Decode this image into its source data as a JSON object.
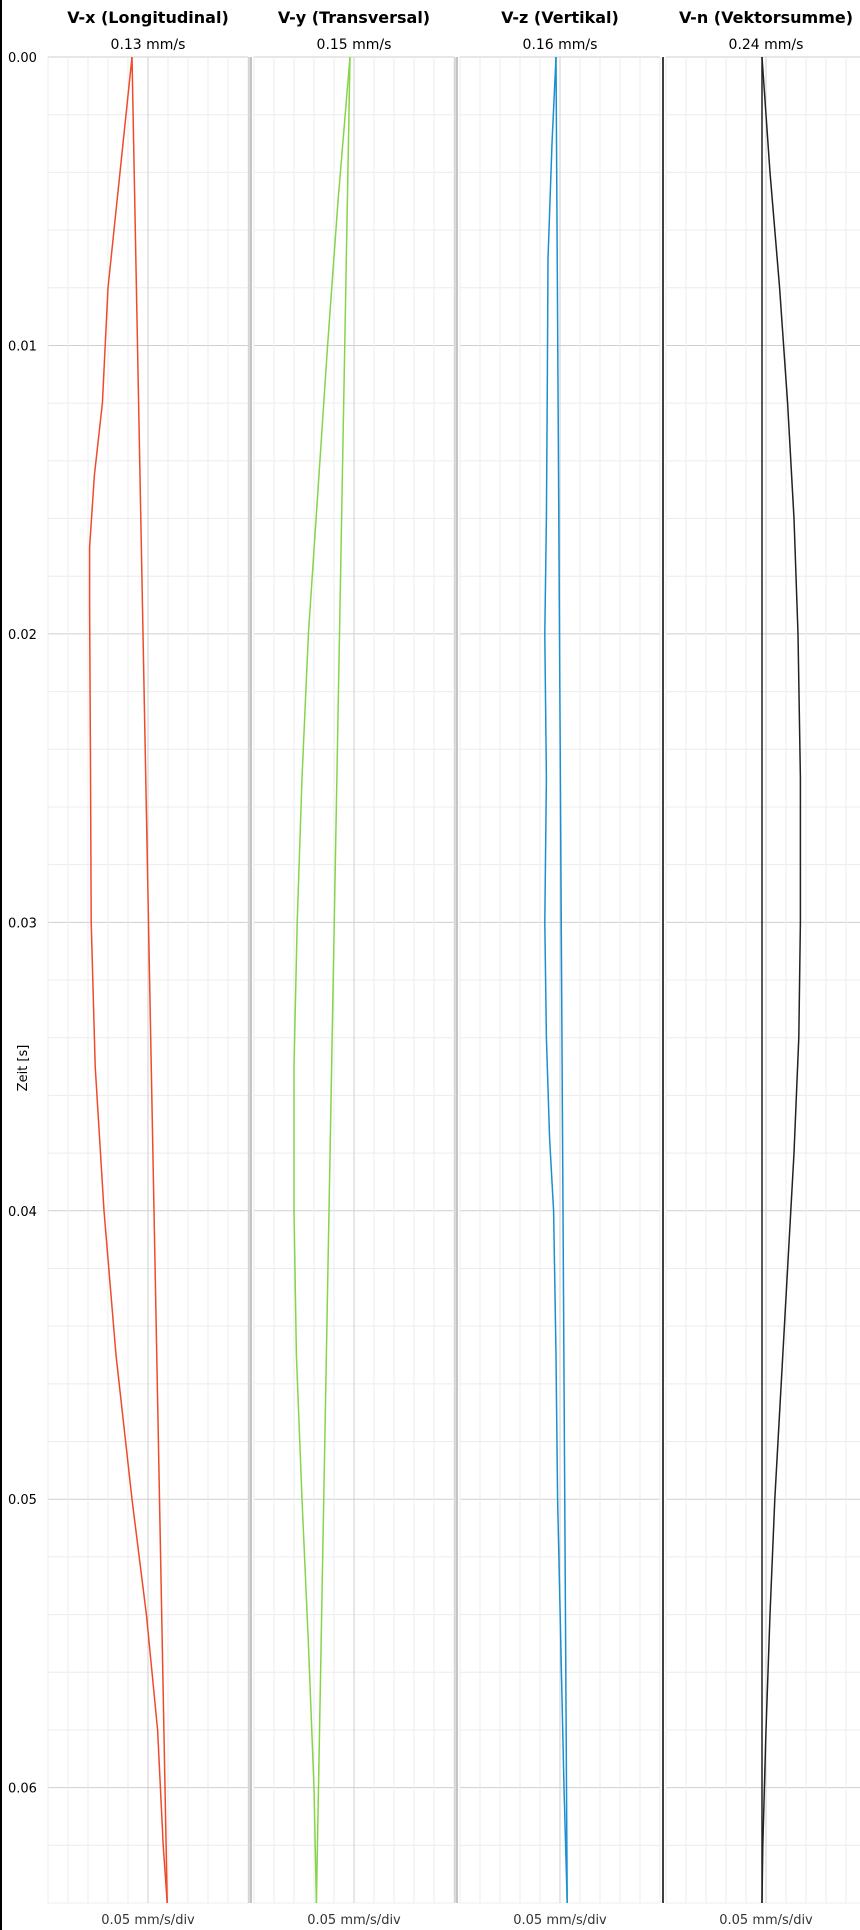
{
  "chart_data": {
    "type": "line",
    "orientation": "vertical-time",
    "ylabel": "Zeit [s]",
    "ylim": [
      0,
      0.064
    ],
    "yticks": [
      "0.00",
      "0.01",
      "0.02",
      "0.03",
      "0.04",
      "0.05",
      "0.06"
    ],
    "grid": true,
    "panels": [
      {
        "title": "V-x (Longitudinal)",
        "peak": "0.13 mm/s",
        "footer": "0.05 mm/s/div",
        "color": "#ee4b2b",
        "xlim": [
          -0.12,
          0.13
        ],
        "series": [
          {
            "t": [
              0.0,
              0.004,
              0.008,
              0.012,
              0.0145,
              0.017,
              0.019,
              0.024,
              0.03,
              0.035,
              0.04,
              0.045,
              0.05,
              0.054,
              0.058,
              0.062,
              0.064
            ],
            "v": [
              -0.015,
              -0.03,
              -0.045,
              -0.052,
              -0.062,
              -0.068,
              -0.068,
              -0.067,
              -0.066,
              -0.061,
              -0.05,
              -0.035,
              -0.015,
              0.003,
              0.017,
              0.024,
              0.029
            ]
          },
          {
            "t": [
              0.0,
              0.064
            ],
            "v": [
              -0.015,
              0.029
            ]
          }
        ]
      },
      {
        "title": "V-y (Transversal)",
        "peak": "0.15 mm/s",
        "footer": "0.05 mm/s/div",
        "color": "#86d44a",
        "xlim": [
          -0.12,
          0.13
        ],
        "series": [
          {
            "t": [
              0.0,
              0.005,
              0.01,
              0.015,
              0.02,
              0.025,
              0.03,
              0.035,
              0.04,
              0.045,
              0.05,
              0.055,
              0.06,
              0.064
            ],
            "v": [
              0.0,
              -0.015,
              -0.028,
              -0.04,
              -0.052,
              -0.06,
              -0.066,
              -0.07,
              -0.07,
              -0.067,
              -0.06,
              -0.052,
              -0.045,
              -0.042
            ]
          },
          {
            "t": [
              0.0,
              0.064
            ],
            "v": [
              0.0,
              -0.042
            ]
          }
        ]
      },
      {
        "title": "V-z (Vertikal)",
        "peak": "0.16 mm/s",
        "footer": "0.05 mm/s/div",
        "color": "#1a8fd1",
        "xlim": [
          -0.12,
          0.13
        ],
        "series": [
          {
            "t": [
              0.0,
              0.003,
              0.007,
              0.012,
              0.016,
              0.02,
              0.025,
              0.03,
              0.034,
              0.0375,
              0.04,
              0.045,
              0.05,
              0.055,
              0.06,
              0.064
            ],
            "v": [
              0.0,
              -0.005,
              -0.01,
              -0.011,
              -0.012,
              -0.014,
              -0.012,
              -0.014,
              -0.012,
              -0.008,
              -0.003,
              0.0,
              0.002,
              0.006,
              0.01,
              0.014
            ]
          },
          {
            "t": [
              0.0,
              0.064
            ],
            "v": [
              0.0,
              0.014
            ]
          }
        ]
      },
      {
        "title": "V-n (Vektorsumme)",
        "peak": "0.24 mm/s",
        "footer": "0.05 mm/s/div",
        "color": "#222222",
        "xlim": [
          -0.12,
          0.13
        ],
        "series": [
          {
            "t": [
              0.0,
              0.004,
              0.008,
              0.012,
              0.016,
              0.02,
              0.025,
              0.03,
              0.034,
              0.038,
              0.042,
              0.046,
              0.05,
              0.054,
              0.058,
              0.062,
              0.064
            ],
            "v": [
              0.0,
              0.01,
              0.022,
              0.032,
              0.04,
              0.045,
              0.048,
              0.048,
              0.046,
              0.04,
              0.032,
              0.024,
              0.016,
              0.01,
              0.005,
              0.001,
              0.0
            ]
          },
          {
            "t": [
              0.0,
              0.064
            ],
            "v": [
              0.0,
              0.0
            ]
          }
        ]
      }
    ]
  }
}
